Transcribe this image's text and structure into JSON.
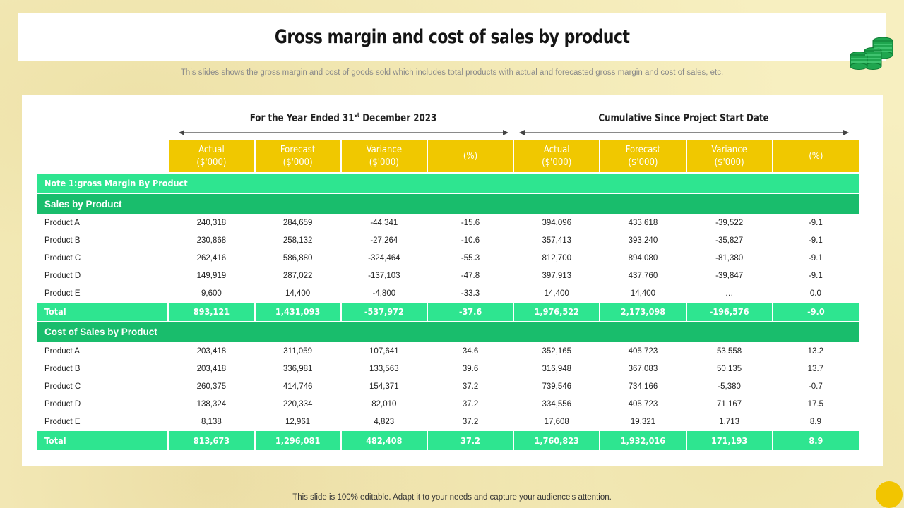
{
  "title": "Gross margin and cost of sales by product",
  "subtitle": "This slides shows the gross margin and cost of goods sold which includes total products with actual and forecasted gross margin and cost of sales, etc.",
  "period_left": {
    "main": "For the Year Ended 31",
    "sup": "st",
    "rest": " December 2023"
  },
  "period_right": "Cumulative Since Project Start Date",
  "columns": [
    {
      "l1": "Actual",
      "l2": "($'000)"
    },
    {
      "l1": "Forecast",
      "l2": "($'000)"
    },
    {
      "l1": "Variance",
      "l2": "($'000)"
    },
    {
      "l1": "(%)",
      "l2": ""
    },
    {
      "l1": "Actual",
      "l2": "($'000)"
    },
    {
      "l1": "Forecast",
      "l2": "($'000)"
    },
    {
      "l1": "Variance",
      "l2": "($'000)"
    },
    {
      "l1": "(%)",
      "l2": ""
    }
  ],
  "note": "Note 1:gross Margin By Product",
  "sales": {
    "heading": "Sales by Product",
    "rows": [
      {
        "label": "Product A",
        "values": [
          "240,318",
          "284,659",
          "-44,341",
          "-15.6",
          "394,096",
          "433,618",
          "-39,522",
          "-9.1"
        ]
      },
      {
        "label": "Product B",
        "values": [
          "230,868",
          "258,132",
          "-27,264",
          "-10.6",
          "357,413",
          "393,240",
          "-35,827",
          "-9.1"
        ]
      },
      {
        "label": "Product C",
        "values": [
          "262,416",
          "586,880",
          "-324,464",
          "-55.3",
          "812,700",
          "894,080",
          "-81,380",
          "-9.1"
        ]
      },
      {
        "label": "Product D",
        "values": [
          "149,919",
          "287,022",
          "-137,103",
          "-47.8",
          "397,913",
          "437,760",
          "-39,847",
          "-9.1"
        ]
      },
      {
        "label": "Product E",
        "values": [
          "9,600",
          "14,400",
          "-4,800",
          "-33.3",
          "14,400",
          "14,400",
          "…",
          "0.0"
        ]
      }
    ],
    "total": {
      "label": "Total",
      "values": [
        "893,121",
        "1,431,093",
        "-537,972",
        "-37.6",
        "1,976,522",
        "2,173,098",
        "-196,576",
        "-9.0"
      ]
    }
  },
  "cost": {
    "heading": "Cost of Sales by Product",
    "rows": [
      {
        "label": "Product A",
        "values": [
          "203,418",
          "311,059",
          "107,641",
          "34.6",
          "352,165",
          "405,723",
          "53,558",
          "13.2"
        ]
      },
      {
        "label": "Product B",
        "values": [
          "203,418",
          "336,981",
          "133,563",
          "39.6",
          "316,948",
          "367,083",
          "50,135",
          "13.7"
        ]
      },
      {
        "label": "Product C",
        "values": [
          "260,375",
          "414,746",
          "154,371",
          "37.2",
          "739,546",
          "734,166",
          "-5,380",
          "-0.7"
        ]
      },
      {
        "label": "Product D",
        "values": [
          "138,324",
          "220,334",
          "82,010",
          "37.2",
          "334,556",
          "405,723",
          "71,167",
          "17.5"
        ]
      },
      {
        "label": "Product E",
        "values": [
          "8,138",
          "12,961",
          "4,823",
          "37.2",
          "17,608",
          "19,321",
          "1,713",
          "8.9"
        ]
      }
    ],
    "total": {
      "label": "Total",
      "values": [
        "813,673",
        "1,296,081",
        "482,408",
        "37.2",
        "1,760,823",
        "1,932,016",
        "171,193",
        "8.9"
      ]
    }
  },
  "footer": "This slide is 100% editable. Adapt it to your needs and capture your audience's attention.",
  "colors": {
    "yellow": "#f0c800",
    "green_light": "#2ee590",
    "green_dark": "#19bd6c",
    "background": "#f7efc0"
  }
}
